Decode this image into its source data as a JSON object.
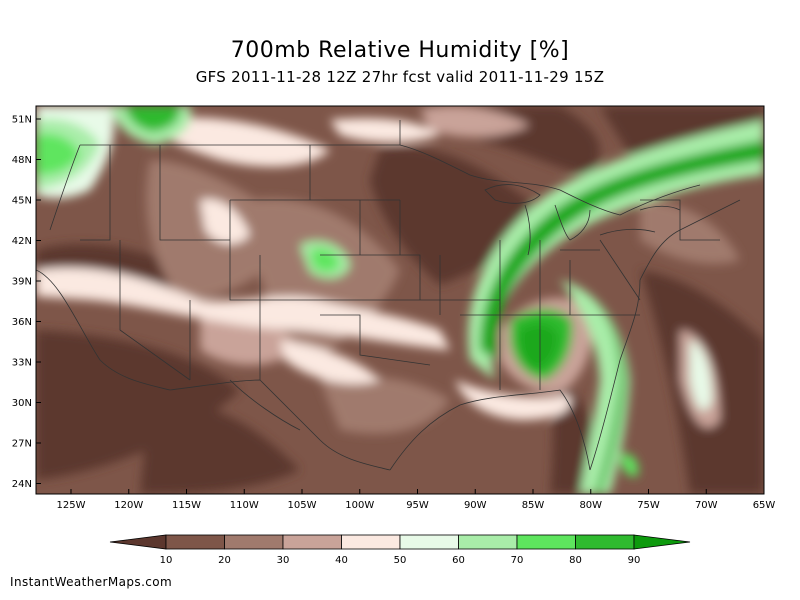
{
  "title": "700mb Relative Humidity [%]",
  "subtitle": "GFS 2011-11-28 12Z 27hr fcst valid 2011-11-29 15Z",
  "credit": "InstantWeatherMaps.com",
  "map": {
    "lat_ticks": [
      "51N",
      "48N",
      "45N",
      "42N",
      "39N",
      "36N",
      "33N",
      "30N",
      "27N",
      "24N"
    ],
    "lon_ticks": [
      "125W",
      "120W",
      "115W",
      "110W",
      "105W",
      "100W",
      "95W",
      "90W",
      "85W",
      "80W",
      "75W",
      "70W",
      "65W"
    ]
  },
  "legend": {
    "labels": [
      "10",
      "20",
      "30",
      "40",
      "50",
      "60",
      "70",
      "80",
      "90"
    ],
    "colors": [
      "#5c372e",
      "#7e5649",
      "#a07a6d",
      "#c9a399",
      "#fbe9e1",
      "#e8fae8",
      "#a9eda9",
      "#5ee55e",
      "#2fba2f",
      "#0d9a0d"
    ]
  },
  "palette": {
    "dark_brown": "#5c372e",
    "brown": "#7e5649",
    "mid_brown": "#a07a6d",
    "light_brown": "#c9a399",
    "cream": "#fbe9e1",
    "pale_green": "#e8fae8",
    "light_green": "#a9eda9",
    "green": "#5ee55e",
    "dark_green": "#1aa81a"
  }
}
